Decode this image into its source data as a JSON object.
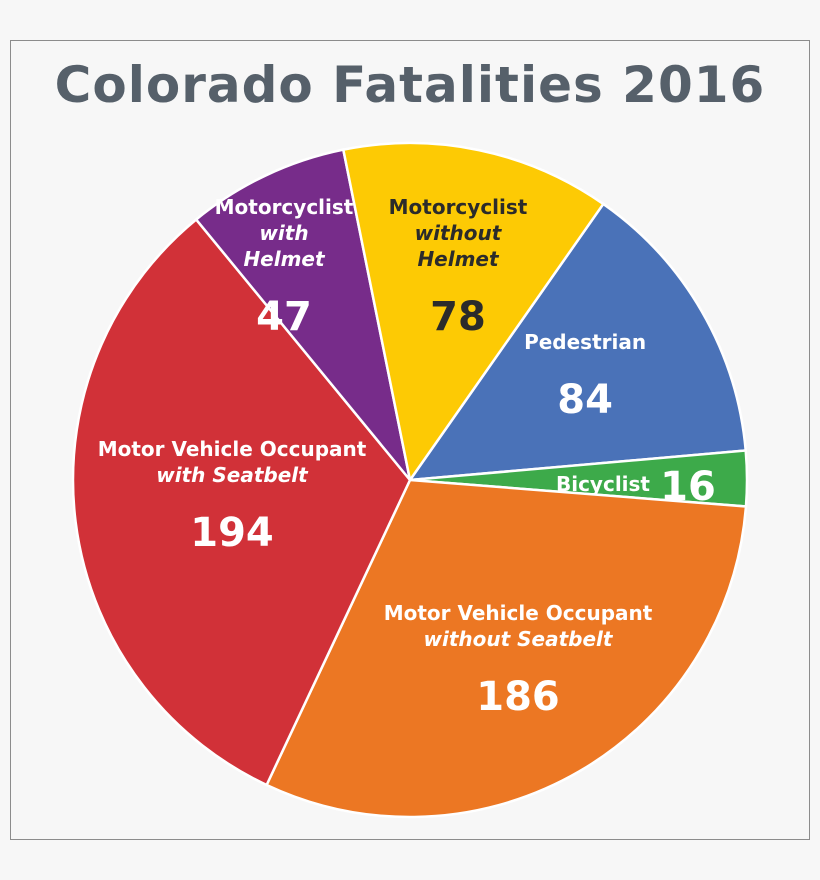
{
  "chart_data": {
    "type": "pie",
    "title": "Colorado Fatalities 2016",
    "categories": [
      "Pedestrian",
      "Bicyclist",
      "Motor Vehicle Occupant without Seatbelt",
      "Motor Vehicle Occupant with Seatbelt",
      "Motorcyclist with Helmet",
      "Motorcyclist without Helmet"
    ],
    "values": [
      84,
      16,
      186,
      194,
      47,
      78
    ],
    "colors": [
      "#4a72b8",
      "#3daa4a",
      "#ec7723",
      "#d13138",
      "#772c8a",
      "#fdca04"
    ],
    "label_colors": [
      "#ffffff",
      "#ffffff",
      "#ffffff",
      "#ffffff",
      "#ffffff",
      "#2b2b2b"
    ],
    "label_lines": [
      [
        "Pedestrian"
      ],
      [
        "Bicyclist"
      ],
      [
        "Motor Vehicle Occupant",
        "without Seatbelt"
      ],
      [
        "Motor Vehicle Occupant",
        "with Seatbelt"
      ],
      [
        "Motorcyclist",
        "with",
        "Helmet"
      ],
      [
        "Motorcyclist",
        "without",
        "Helmet"
      ]
    ],
    "start_angle_deg": -55,
    "direction": "clockwise"
  }
}
